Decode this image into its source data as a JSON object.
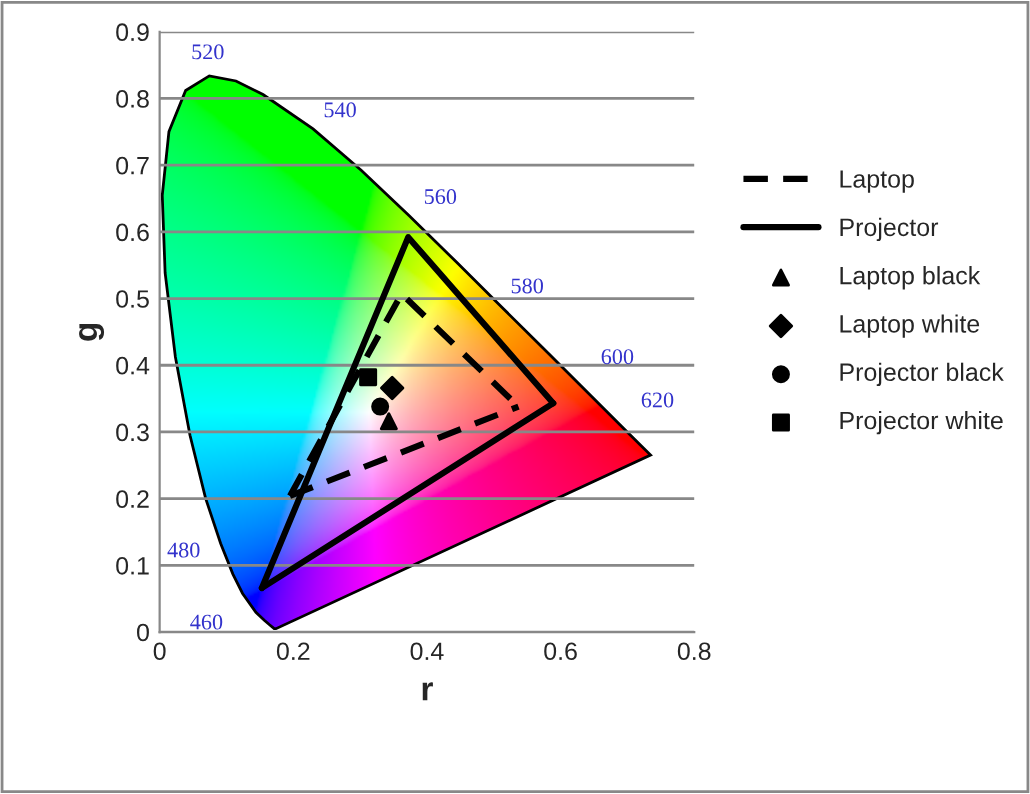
{
  "chart_data": {
    "type": "line",
    "xlabel": "r",
    "ylabel": "g",
    "xlim": [
      0,
      0.8
    ],
    "ylim": [
      0,
      0.9
    ],
    "xticks": [
      {
        "value": 0,
        "label": "0"
      },
      0.2,
      0.4,
      0.6,
      0.8
    ],
    "yticks": [
      {
        "value": 0,
        "label": "0"
      },
      0.1,
      0.2,
      0.3,
      0.4,
      0.5,
      0.6,
      0.7,
      0.8,
      0.9
    ],
    "grid": "y",
    "legend": "right",
    "series": [
      {
        "name": "Laptop",
        "line_style": "dashed",
        "color": "#000000",
        "x": [
          0.195,
          0.362,
          0.537
        ],
        "values": [
          0.204,
          0.507,
          0.338
        ]
      },
      {
        "line_style": "dashed",
        "color": "#000000",
        "x": [
          0.195,
          0.537
        ],
        "values": [
          0.204,
          0.338
        ]
      },
      {
        "name": "Projector",
        "line_style": "solid",
        "color": "#000000",
        "x": [
          0.153,
          0.372,
          0.589
        ],
        "values": [
          0.066,
          0.592,
          0.343
        ]
      },
      {
        "line_style": "solid",
        "color": "#000000",
        "x": [
          0.153,
          0.589
        ],
        "values": [
          0.066,
          0.343
        ]
      },
      {
        "name": "Laptop black",
        "type": "scatter",
        "marker": "triangle",
        "color": "#000000",
        "x": [
          0.343
        ],
        "values": [
          0.316
        ]
      },
      {
        "name": "Laptop white",
        "type": "scatter",
        "marker": "diamond",
        "color": "#000000",
        "x": [
          0.348
        ],
        "values": [
          0.366
        ]
      },
      {
        "name": "Projector black",
        "type": "scatter",
        "marker": "circle",
        "color": "#000000",
        "x": [
          0.33
        ],
        "values": [
          0.338
        ]
      },
      {
        "name": "Projector white",
        "type": "scatter",
        "marker": "square",
        "color": "#000000",
        "x": [
          0.312
        ],
        "values": [
          0.382
        ]
      }
    ],
    "annotations": [
      "520",
      "540",
      "560",
      "580",
      "600",
      "620",
      "480",
      "460"
    ]
  }
}
